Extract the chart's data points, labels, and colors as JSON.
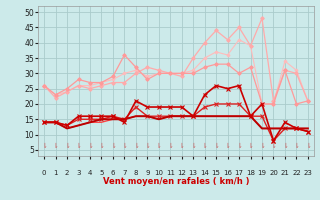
{
  "xlabel": "Vent moyen/en rafales ( km/h )",
  "background_color": "#cceaea",
  "grid_color": "#aacccc",
  "xlim": [
    -0.5,
    23.5
  ],
  "ylim": [
    3,
    52
  ],
  "yticks": [
    5,
    10,
    15,
    20,
    25,
    30,
    35,
    40,
    45,
    50
  ],
  "xticks": [
    0,
    1,
    2,
    3,
    4,
    5,
    6,
    7,
    8,
    9,
    10,
    11,
    12,
    13,
    14,
    15,
    16,
    17,
    18,
    19,
    20,
    21,
    22,
    23
  ],
  "x": [
    0,
    1,
    2,
    3,
    4,
    5,
    6,
    7,
    8,
    9,
    10,
    11,
    12,
    13,
    14,
    15,
    16,
    17,
    18,
    19,
    20,
    21,
    22,
    23
  ],
  "series": [
    {
      "y": [
        26,
        22,
        24,
        26,
        25,
        26,
        27,
        27,
        30,
        32,
        31,
        30,
        29,
        35,
        40,
        44,
        41,
        45,
        39,
        48,
        21,
        31,
        30,
        21
      ],
      "color": "#ffaaaa",
      "marker": "D",
      "markersize": 1.8,
      "linewidth": 0.9,
      "zorder": 3
    },
    {
      "y": [
        26,
        23,
        25,
        28,
        27,
        27,
        29,
        36,
        32,
        28,
        30,
        30,
        30,
        30,
        32,
        33,
        33,
        30,
        32,
        20,
        20,
        31,
        20,
        21
      ],
      "color": "#ff9999",
      "marker": "D",
      "markersize": 1.8,
      "linewidth": 0.9,
      "zorder": 3
    },
    {
      "y": [
        26,
        23,
        24,
        26,
        26,
        27,
        28,
        30,
        31,
        29,
        30,
        30,
        30,
        31,
        35,
        37,
        36,
        41,
        39,
        20,
        20,
        34,
        31,
        21
      ],
      "color": "#ffbbbb",
      "marker": "D",
      "markersize": 1.5,
      "linewidth": 0.8,
      "zorder": 2
    },
    {
      "y": [
        14,
        14,
        13,
        16,
        16,
        16,
        16,
        14,
        21,
        19,
        19,
        19,
        19,
        16,
        23,
        26,
        25,
        26,
        16,
        20,
        8,
        14,
        12,
        11
      ],
      "color": "#cc0000",
      "marker": "x",
      "markersize": 3,
      "linewidth": 1.2,
      "zorder": 5
    },
    {
      "y": [
        14,
        14,
        13,
        15,
        15,
        15,
        16,
        15,
        19,
        16,
        16,
        16,
        16,
        16,
        19,
        20,
        20,
        20,
        16,
        16,
        8,
        12,
        12,
        11
      ],
      "color": "#dd2222",
      "marker": "x",
      "markersize": 2.5,
      "linewidth": 1.0,
      "zorder": 4
    },
    {
      "y": [
        14,
        14,
        12,
        13,
        14,
        15,
        15,
        15,
        16,
        16,
        15,
        16,
        16,
        16,
        16,
        16,
        16,
        16,
        16,
        12,
        12,
        12,
        12,
        12
      ],
      "color": "#bb0000",
      "marker": null,
      "markersize": 0,
      "linewidth": 1.4,
      "zorder": 4
    },
    {
      "y": [
        14,
        14,
        12,
        13,
        14,
        14,
        15,
        15,
        16,
        16,
        15,
        16,
        16,
        16,
        16,
        16,
        16,
        16,
        16,
        12,
        12,
        12,
        12,
        12
      ],
      "color": "#ff4444",
      "marker": null,
      "markersize": 0,
      "linewidth": 0.9,
      "zorder": 3
    }
  ]
}
